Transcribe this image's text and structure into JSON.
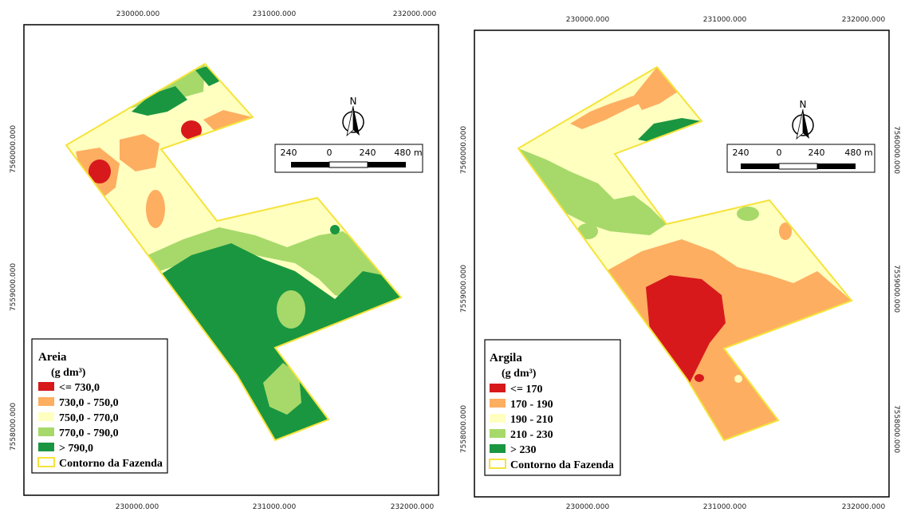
{
  "colors": {
    "c1": "#d7191c",
    "c2": "#fdae61",
    "c3": "#ffffc0",
    "c4": "#a6d96a",
    "c5": "#1a9641",
    "outline": "#f5e33a"
  },
  "x_ticks": [
    "230000.000",
    "231000.000",
    "232000.000"
  ],
  "y_ticks": [
    "7560000.000",
    "7559000.000",
    "7558000.000"
  ],
  "north_label": "N",
  "scale_labels": [
    "240",
    "0",
    "240",
    "480 m"
  ],
  "maps": [
    {
      "legend_title": "Areia",
      "legend_unit": "(g dm³)",
      "classes": [
        {
          "label": "<= 730,0",
          "color": "#d7191c"
        },
        {
          "label": "730,0 - 750,0",
          "color": "#fdae61"
        },
        {
          "label": "750,0 - 770,0",
          "color": "#ffffc0"
        },
        {
          "label": "770,0 - 790,0",
          "color": "#a6d96a"
        },
        {
          "label": "> 790,0",
          "color": "#1a9641"
        }
      ],
      "outline_label": "Contorno da Fazenda"
    },
    {
      "legend_title": "Argila",
      "legend_unit": "(g dm³)",
      "classes": [
        {
          "label": "<= 170",
          "color": "#d7191c"
        },
        {
          "label": "170 - 190",
          "color": "#fdae61"
        },
        {
          "label": "190 - 210",
          "color": "#ffffc0"
        },
        {
          "label": "210 - 230",
          "color": "#a6d96a"
        },
        {
          "label": "> 230",
          "color": "#1a9641"
        }
      ],
      "outline_label": "Contorno da Fazenda"
    }
  ]
}
